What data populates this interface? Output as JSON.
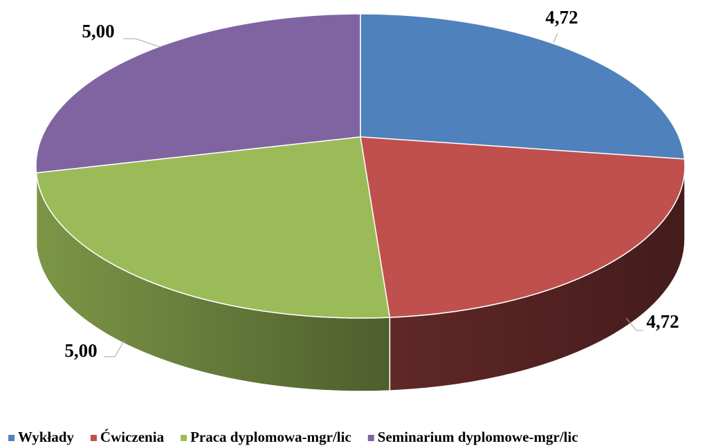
{
  "chart_data": {
    "type": "pie",
    "categories": [
      "Wykłady",
      "Ćwiczenia",
      "Praca dyplomowa-mgr/lic",
      "Seminarium dyplomowe-mgr/lic"
    ],
    "values": [
      4.72,
      4.72,
      5.0,
      5.0
    ],
    "value_labels": [
      "4,72",
      "4,72",
      "5,00",
      "5,00"
    ],
    "colors": [
      "#4f81bd",
      "#c0504d",
      "#9bbb59",
      "#8064a2"
    ],
    "legend": "bottom"
  }
}
